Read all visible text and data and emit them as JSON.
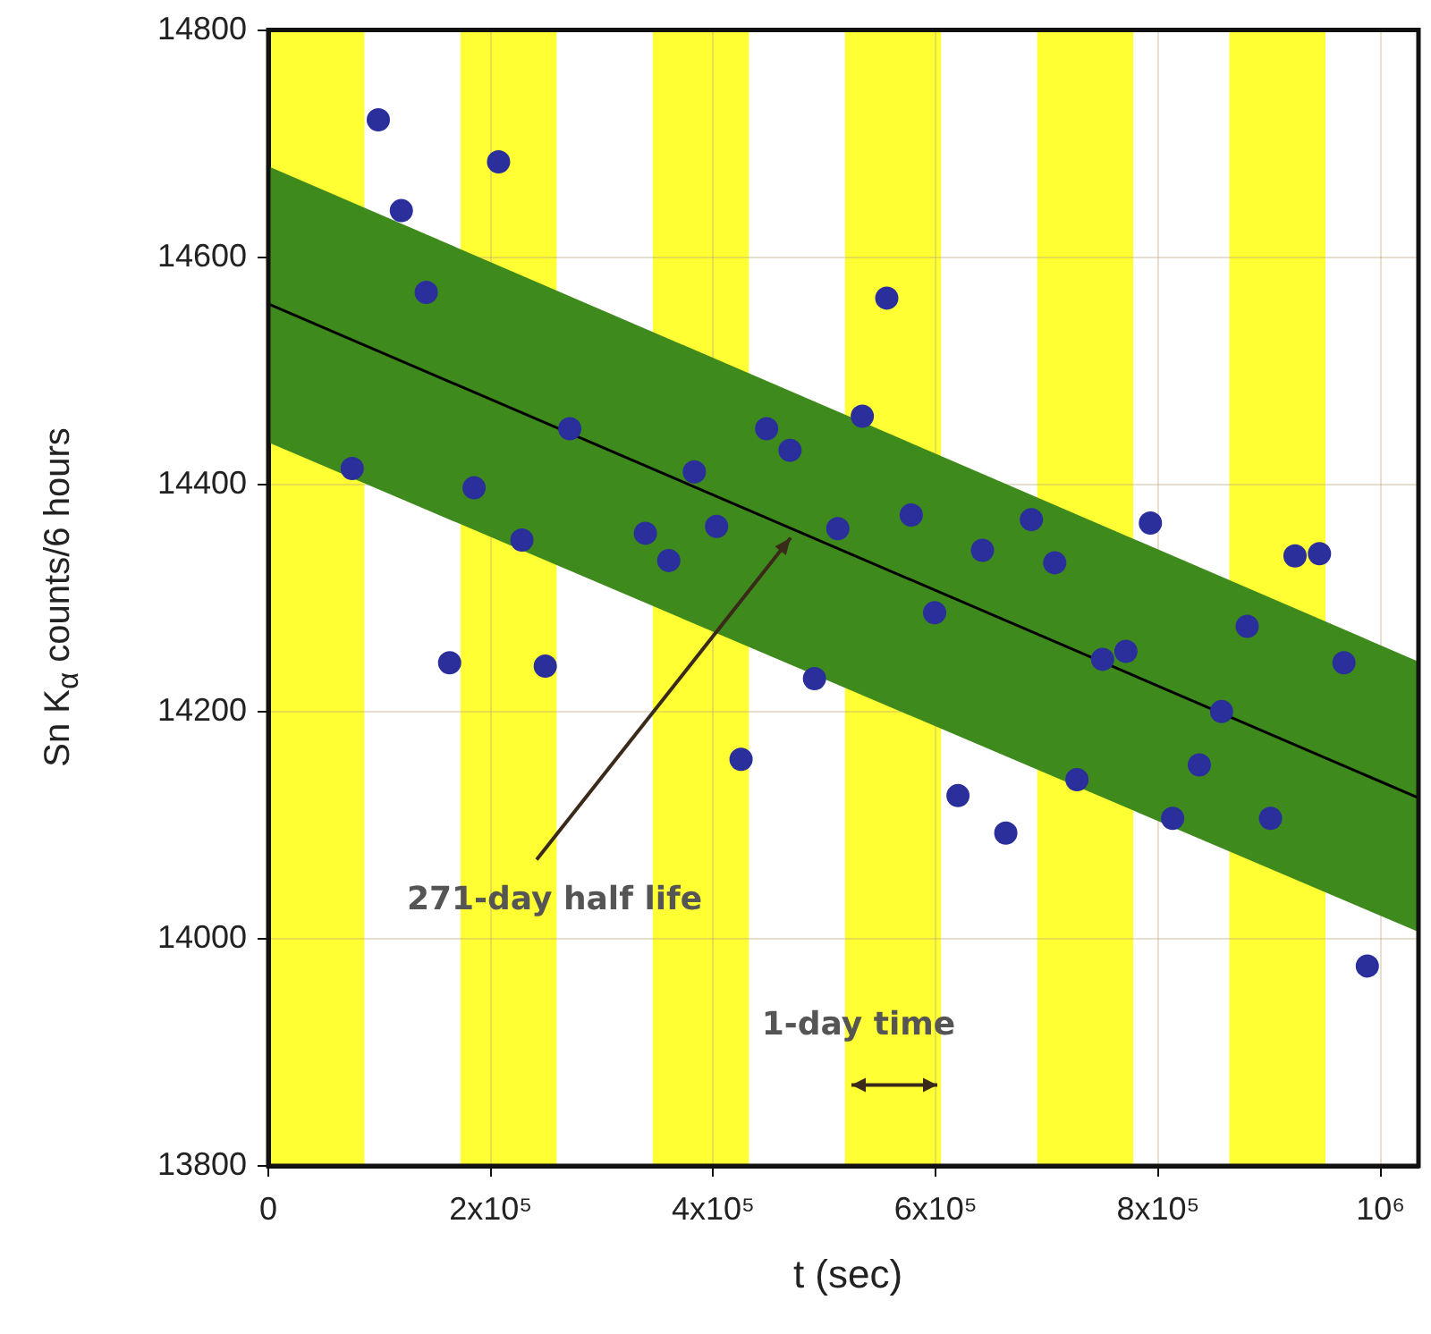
{
  "chart_data": {
    "type": "scatter",
    "xlabel": "t (sec)",
    "ylabel": "Sn K$_{α}$ counts/6 hours",
    "xlim": [
      0,
      1034000
    ],
    "ylim": [
      13800,
      14800
    ],
    "xticks": [
      0,
      {
        "value": 200000,
        "label": "2x10⁵"
      },
      {
        "value": 400000,
        "label": "4x10⁵"
      },
      {
        "value": 600000,
        "label": "6x10⁵"
      },
      {
        "value": 800000,
        "label": "8x10⁵"
      },
      {
        "value": 1000000,
        "label": "10⁶"
      }
    ],
    "yticks": [
      13800,
      14000,
      14200,
      14400,
      14600,
      14800
    ],
    "grid": true,
    "bands": [
      {
        "axis": "x",
        "from": 0,
        "to": 86400,
        "color": "#ffff33"
      },
      {
        "axis": "x",
        "from": 172800,
        "to": 259200,
        "color": "#ffff33"
      },
      {
        "axis": "x",
        "from": 345600,
        "to": 432000,
        "color": "#ffff33"
      },
      {
        "axis": "x",
        "from": 518400,
        "to": 604800,
        "color": "#ffff33"
      },
      {
        "axis": "x",
        "from": 691200,
        "to": 777600,
        "color": "#ffff33"
      },
      {
        "axis": "x",
        "from": 864000,
        "to": 950400,
        "color": "#ffff33"
      }
    ],
    "series": [
      {
        "type": "line",
        "color": "#000000",
        "x": [
          0,
          1034000
        ],
        "values": [
          14559,
          14124
        ],
        "lower": [
          14437,
          14006
        ],
        "upper": [
          14680,
          14244
        ]
      },
      {
        "color": "#2a2f9c",
        "marker": "circle",
        "x": [
          75400,
          98900,
          119600,
          142000,
          163000,
          185000,
          207000,
          228000,
          249000,
          271000,
          339000,
          360000,
          383000,
          403000,
          425000,
          448000,
          469000,
          491000,
          512000,
          534000,
          556000,
          578000,
          599000,
          620000,
          642000,
          663000,
          686000,
          707000,
          727000,
          750000,
          771000,
          793000,
          813000,
          837000,
          857000,
          880000,
          901000,
          923000,
          945000,
          967000,
          988000
        ],
        "values": [
          14414,
          14721,
          14641,
          14569,
          14243,
          14397,
          14684,
          14351,
          14240,
          14449,
          14357,
          14333,
          14411,
          14363,
          14158,
          14449,
          14430,
          14229,
          14361,
          14460,
          14564,
          14373,
          14287,
          14126,
          14342,
          14093,
          14369,
          14331,
          14140,
          14246,
          14253,
          14366,
          14106,
          14153,
          14200,
          14275,
          14106,
          14337,
          14339,
          14243,
          13976
        ]
      }
    ],
    "annotations": [
      "271-day half life",
      "1-day time"
    ]
  }
}
